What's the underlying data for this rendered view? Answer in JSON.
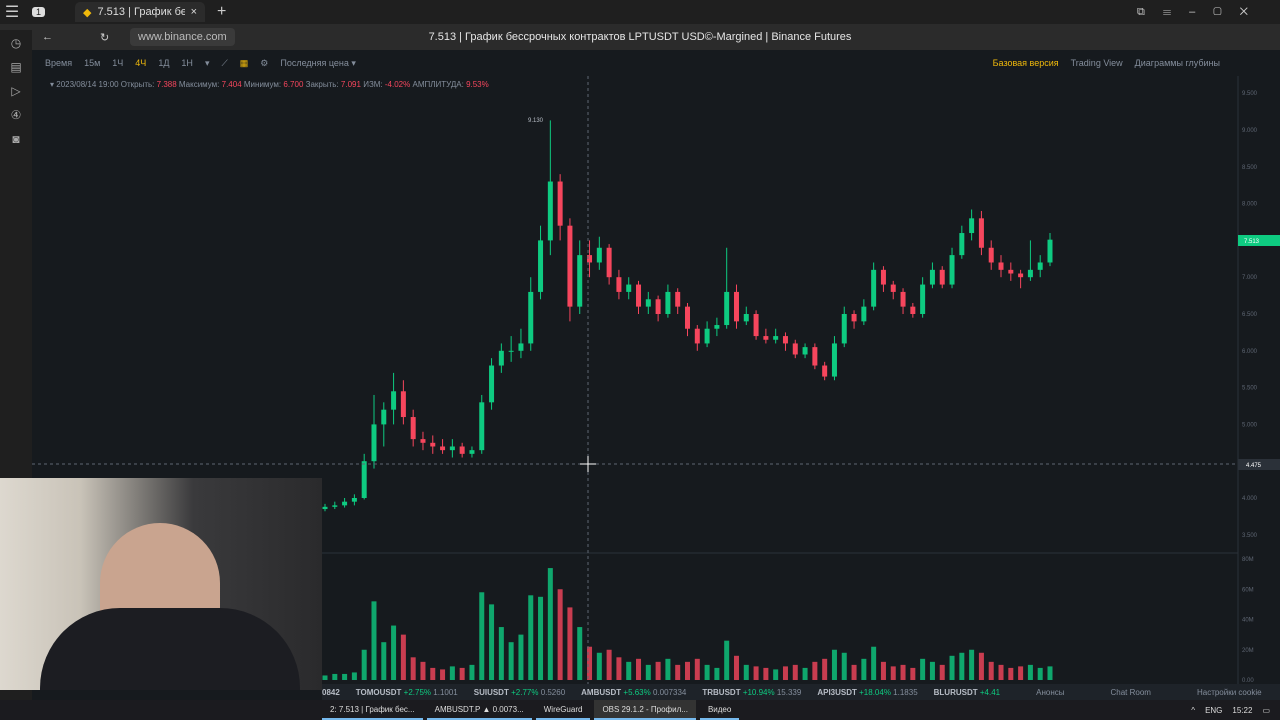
{
  "browser": {
    "tab_title": "7.513 | График бессрочн",
    "url": "www.binance.com",
    "page_title": "7.513 | График бессрочных контрактов LPTUSDT USD©-Margined | Binance Futures",
    "tab_count": "1"
  },
  "toolbar": {
    "items": [
      "Время",
      "15м",
      "1Ч",
      "4Ч",
      "1Д",
      "1Н"
    ],
    "active": "4Ч",
    "price_type": "Последняя цена",
    "right": [
      "Базовая версия",
      "Trading View",
      "Диаграммы глубины"
    ]
  },
  "ohlc": {
    "date": "2023/08/14 19:00",
    "open_l": "Открыть:",
    "open": "7.388",
    "high_l": "Максимум:",
    "high": "7.404",
    "low_l": "Минимум:",
    "low": "6.700",
    "close_l": "Закрыть:",
    "close": "7.091",
    "chg_l": "ИЗМ:",
    "chg": "-4.02%",
    "amp_l": "АМПЛИТУДА:",
    "amp": "9.53%"
  },
  "chart_data": {
    "type": "candlestick",
    "symbol": "LPTUSDT",
    "interval": "4Ч",
    "price_ticks": [
      "9.500",
      "9.000",
      "8.500",
      "8.000",
      "7.000",
      "6.500",
      "6.000",
      "5.500",
      "5.000",
      "4.000",
      "3.500"
    ],
    "price_ylim": [
      3.2,
      9.65
    ],
    "volume_ticks": [
      "80M",
      "60M",
      "40M",
      "20M",
      "0.00"
    ],
    "volume_ylim": [
      0,
      80
    ],
    "last_price": "7.513",
    "crosshair_price": "4.475",
    "max_label": "9.130",
    "up_color": "#0ecb81",
    "down_color": "#f6465d",
    "candles": [
      [
        3.85,
        3.92,
        3.82,
        3.88,
        3
      ],
      [
        3.88,
        3.95,
        3.85,
        3.9,
        4
      ],
      [
        3.9,
        4.0,
        3.87,
        3.95,
        4
      ],
      [
        3.95,
        4.05,
        3.9,
        4.0,
        5
      ],
      [
        4.0,
        4.6,
        3.98,
        4.5,
        20
      ],
      [
        4.5,
        5.4,
        4.4,
        5.0,
        52
      ],
      [
        5.0,
        5.3,
        4.7,
        5.2,
        25
      ],
      [
        5.2,
        5.7,
        5.0,
        5.45,
        36
      ],
      [
        5.45,
        5.6,
        5.0,
        5.1,
        30
      ],
      [
        5.1,
        5.2,
        4.7,
        4.8,
        15
      ],
      [
        4.8,
        4.9,
        4.65,
        4.75,
        12
      ],
      [
        4.75,
        4.85,
        4.6,
        4.7,
        8
      ],
      [
        4.7,
        4.8,
        4.6,
        4.65,
        7
      ],
      [
        4.65,
        4.8,
        4.55,
        4.7,
        9
      ],
      [
        4.7,
        4.75,
        4.55,
        4.6,
        8
      ],
      [
        4.6,
        4.7,
        4.55,
        4.65,
        10
      ],
      [
        4.65,
        5.4,
        4.6,
        5.3,
        58
      ],
      [
        5.3,
        5.9,
        5.2,
        5.8,
        50
      ],
      [
        5.8,
        6.1,
        5.7,
        6.0,
        35
      ],
      [
        6.0,
        6.2,
        5.85,
        6.0,
        25
      ],
      [
        6.0,
        6.3,
        5.9,
        6.1,
        30
      ],
      [
        6.1,
        7.0,
        6.0,
        6.8,
        56
      ],
      [
        6.8,
        7.7,
        6.7,
        7.5,
        55
      ],
      [
        7.5,
        9.13,
        7.3,
        8.3,
        74
      ],
      [
        8.3,
        8.4,
        7.5,
        7.7,
        60
      ],
      [
        7.7,
        7.8,
        6.4,
        6.6,
        48
      ],
      [
        6.6,
        7.5,
        6.5,
        7.3,
        35
      ],
      [
        7.3,
        7.5,
        7.0,
        7.2,
        22
      ],
      [
        7.2,
        7.55,
        7.1,
        7.4,
        18
      ],
      [
        7.4,
        7.45,
        6.9,
        7.0,
        20
      ],
      [
        7.0,
        7.1,
        6.7,
        6.8,
        15
      ],
      [
        6.8,
        7.0,
        6.7,
        6.9,
        12
      ],
      [
        6.9,
        6.95,
        6.5,
        6.6,
        14
      ],
      [
        6.6,
        6.8,
        6.5,
        6.7,
        10
      ],
      [
        6.7,
        6.75,
        6.4,
        6.5,
        12
      ],
      [
        6.5,
        6.9,
        6.45,
        6.8,
        14
      ],
      [
        6.8,
        6.85,
        6.5,
        6.6,
        10
      ],
      [
        6.6,
        6.65,
        6.2,
        6.3,
        12
      ],
      [
        6.3,
        6.35,
        6.0,
        6.1,
        14
      ],
      [
        6.1,
        6.4,
        6.05,
        6.3,
        10
      ],
      [
        6.3,
        6.45,
        6.2,
        6.35,
        8
      ],
      [
        6.35,
        7.4,
        6.3,
        6.8,
        26
      ],
      [
        6.8,
        6.9,
        6.3,
        6.4,
        16
      ],
      [
        6.4,
        6.6,
        6.35,
        6.5,
        10
      ],
      [
        6.5,
        6.55,
        6.15,
        6.2,
        9
      ],
      [
        6.2,
        6.3,
        6.1,
        6.15,
        8
      ],
      [
        6.15,
        6.3,
        6.1,
        6.2,
        7
      ],
      [
        6.2,
        6.25,
        6.0,
        6.1,
        9
      ],
      [
        6.1,
        6.15,
        5.9,
        5.95,
        10
      ],
      [
        5.95,
        6.1,
        5.9,
        6.05,
        8
      ],
      [
        6.05,
        6.1,
        5.75,
        5.8,
        12
      ],
      [
        5.8,
        5.85,
        5.6,
        5.65,
        14
      ],
      [
        5.65,
        6.2,
        5.6,
        6.1,
        20
      ],
      [
        6.1,
        6.6,
        6.05,
        6.5,
        18
      ],
      [
        6.5,
        6.55,
        6.3,
        6.4,
        10
      ],
      [
        6.4,
        6.7,
        6.35,
        6.6,
        14
      ],
      [
        6.6,
        7.2,
        6.55,
        7.1,
        22
      ],
      [
        7.1,
        7.15,
        6.8,
        6.9,
        12
      ],
      [
        6.9,
        6.95,
        6.7,
        6.8,
        9
      ],
      [
        6.8,
        6.85,
        6.5,
        6.6,
        10
      ],
      [
        6.6,
        6.65,
        6.45,
        6.5,
        8
      ],
      [
        6.5,
        7.0,
        6.45,
        6.9,
        14
      ],
      [
        6.9,
        7.2,
        6.85,
        7.1,
        12
      ],
      [
        7.1,
        7.15,
        6.85,
        6.9,
        10
      ],
      [
        6.9,
        7.4,
        6.85,
        7.3,
        16
      ],
      [
        7.3,
        7.7,
        7.25,
        7.6,
        18
      ],
      [
        7.6,
        7.92,
        7.5,
        7.8,
        20
      ],
      [
        7.8,
        7.9,
        7.3,
        7.4,
        18
      ],
      [
        7.4,
        7.5,
        7.1,
        7.2,
        12
      ],
      [
        7.2,
        7.3,
        7.0,
        7.1,
        10
      ],
      [
        7.1,
        7.2,
        6.95,
        7.05,
        8
      ],
      [
        7.05,
        7.1,
        6.85,
        7.0,
        9
      ],
      [
        7.0,
        7.5,
        6.95,
        7.1,
        10
      ],
      [
        7.1,
        7.3,
        7.0,
        7.2,
        8
      ],
      [
        7.2,
        7.6,
        7.15,
        7.51,
        9
      ]
    ]
  },
  "ticker": [
    {
      "sym": "0842",
      "chg": "",
      "price": ""
    },
    {
      "sym": "TOMOUSDT",
      "chg": "+2.75%",
      "price": "1.1001"
    },
    {
      "sym": "SUIUSDT",
      "chg": "+2.77%",
      "price": "0.5260"
    },
    {
      "sym": "AMBUSDT",
      "chg": "+5.63%",
      "price": "0.007334"
    },
    {
      "sym": "TRBUSDT",
      "chg": "+10.94%",
      "price": "15.339"
    },
    {
      "sym": "API3USDT",
      "chg": "+18.04%",
      "price": "1.1835"
    },
    {
      "sym": "BLURUSDT",
      "chg": "+4.41",
      "price": ""
    }
  ],
  "ticker_links": [
    "Анонсы",
    "Chat Room",
    "Настройки cookie"
  ],
  "taskbar": {
    "items": [
      "2: 7.513 | График бес...",
      "AMBUSDT.P ▲ 0.0073...",
      "WireGuard",
      "OBS 29.1.2 - Профил...",
      "Видео"
    ],
    "lang": "ENG",
    "time": "15:22"
  }
}
